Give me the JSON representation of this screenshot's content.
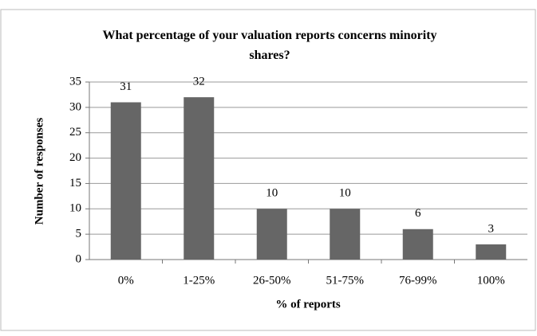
{
  "chart_data": {
    "type": "bar",
    "title": "What percentage of your valuation reports concerns minority shares?",
    "xlabel": "% of reports",
    "ylabel": "Number of responses",
    "categories": [
      "0%",
      "1-25%",
      "26-50%",
      "51-75%",
      "76-99%",
      "100%"
    ],
    "values": [
      31,
      32,
      10,
      10,
      6,
      3
    ],
    "color": "#666666",
    "ylim": [
      0,
      35
    ],
    "yticks": [
      0,
      5,
      10,
      15,
      20,
      25,
      30,
      35
    ],
    "grid": true
  }
}
